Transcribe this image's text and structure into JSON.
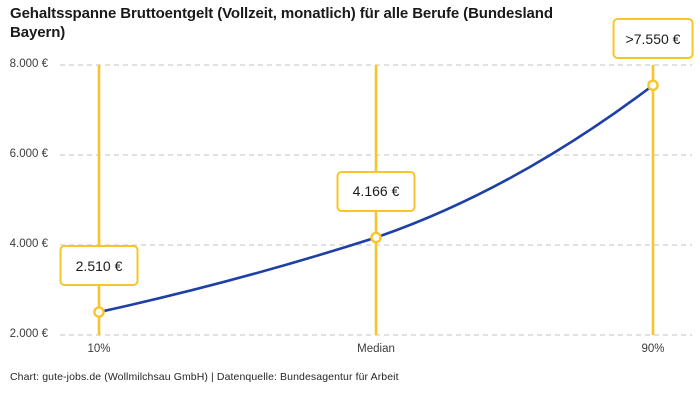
{
  "header": {
    "title_line1": "Gehaltsspanne Bruttoentgelt (Vollzeit, monatlich) für alle Berufe (Bundesland",
    "title_line2": "Bayern)"
  },
  "footer": {
    "attribution": "Chart: gute-jobs.de (Wollmilchsau GmbH) | Datenquelle: Bundesagentur für Arbeit"
  },
  "chart_data": {
    "type": "line",
    "title": "Gehaltsspanne Bruttoentgelt (Vollzeit, monatlich) für alle Berufe (Bundesland Bayern)",
    "categories": [
      "10%",
      "Median",
      "90%"
    ],
    "values": [
      2510,
      4166,
      7550
    ],
    "point_labels": [
      "2.510 €",
      "4.166 €",
      ">7.550 €"
    ],
    "y_ticks": [
      "2.000 €",
      "4.000 €",
      "6.000 €",
      "8.000 €"
    ],
    "y_tick_values": [
      2000,
      4000,
      6000,
      8000
    ],
    "ylim": [
      2000,
      8000
    ],
    "xlabel": "",
    "ylabel": "",
    "grid": "horizontal-dashed",
    "legend": "none",
    "colors": {
      "line": "#1E3FA6",
      "marker": "#F7C52B",
      "grid": "#CFCFCF",
      "marker_fill": "#FFFFFF",
      "text": "#1A1A1A"
    }
  }
}
